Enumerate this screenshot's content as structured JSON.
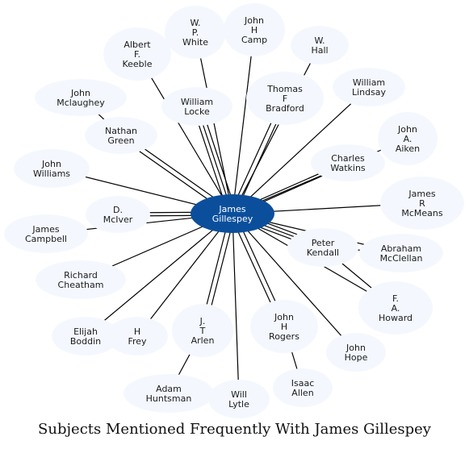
{
  "caption": "Subjects Mentioned Frequently With James Gillespey",
  "colors": {
    "center_fill": "#0b4f9c",
    "node_fill": "#f4f8fe",
    "edge": "#000000"
  },
  "center": {
    "id": "james-gillespey",
    "label": [
      "James",
      "Gillespey"
    ]
  },
  "nodes": [
    {
      "id": "w-p-white",
      "label": [
        "W.",
        "P.",
        "White"
      ]
    },
    {
      "id": "john-h-camp",
      "label": [
        "John",
        "H",
        "Camp"
      ]
    },
    {
      "id": "w-hall",
      "label": [
        "W.",
        "Hall"
      ]
    },
    {
      "id": "albert-f-keeble",
      "label": [
        "Albert",
        "F.",
        "Keeble"
      ]
    },
    {
      "id": "john-mclaughey",
      "label": [
        "John",
        "Mclaughey"
      ]
    },
    {
      "id": "william-locke",
      "label": [
        "William",
        "Locke"
      ]
    },
    {
      "id": "thomas-f-bradford",
      "label": [
        "Thomas",
        "F",
        "Bradford"
      ]
    },
    {
      "id": "william-lindsay",
      "label": [
        "William",
        "Lindsay"
      ]
    },
    {
      "id": "nathan-green",
      "label": [
        "Nathan",
        "Green"
      ]
    },
    {
      "id": "john-a-aiken",
      "label": [
        "John",
        "A.",
        "Aiken"
      ]
    },
    {
      "id": "charles-watkins",
      "label": [
        "Charles",
        "Watkins"
      ]
    },
    {
      "id": "john-williams",
      "label": [
        "John",
        "Williams"
      ]
    },
    {
      "id": "james-r-mcmeans",
      "label": [
        "James",
        "R",
        "McMeans"
      ]
    },
    {
      "id": "d-mciver",
      "label": [
        "D.",
        "McIver"
      ]
    },
    {
      "id": "james-campbell",
      "label": [
        "James",
        "Campbell"
      ]
    },
    {
      "id": "peter-kendall",
      "label": [
        "Peter",
        "Kendall"
      ]
    },
    {
      "id": "abraham-mcclellan",
      "label": [
        "Abraham",
        "McClellan"
      ]
    },
    {
      "id": "richard-cheatham",
      "label": [
        "Richard",
        "Cheatham"
      ]
    },
    {
      "id": "f-a-howard",
      "label": [
        "F.",
        "A.",
        "Howard"
      ]
    },
    {
      "id": "john-h-rogers",
      "label": [
        "John",
        "H",
        "Rogers"
      ]
    },
    {
      "id": "j-t-arlen",
      "label": [
        "J.",
        "T",
        "Arlen"
      ]
    },
    {
      "id": "elijah-boddin",
      "label": [
        "Elijah",
        "Boddin"
      ]
    },
    {
      "id": "h-frey",
      "label": [
        "H",
        "Frey"
      ]
    },
    {
      "id": "john-hope",
      "label": [
        "John",
        "Hope"
      ]
    },
    {
      "id": "isaac-allen",
      "label": [
        "Isaac",
        "Allen"
      ]
    },
    {
      "id": "adam-huntsman",
      "label": [
        "Adam",
        "Huntsman"
      ]
    },
    {
      "id": "will-lytle",
      "label": [
        "Will",
        "Lytle"
      ]
    }
  ]
}
